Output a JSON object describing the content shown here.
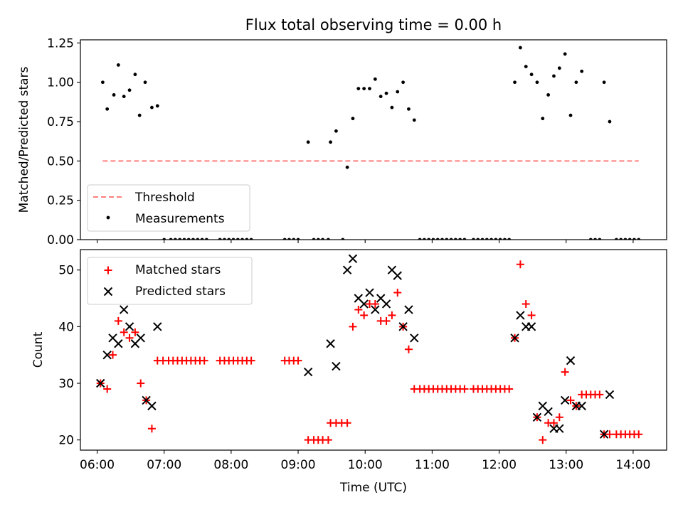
{
  "chart_data": [
    {
      "type": "scatter",
      "title": "Flux total observing time = 0.00 h",
      "xlabel": "",
      "ylabel": "Matched/Predicted stars",
      "xlim": [
        "05:45",
        "14:30"
      ],
      "ylim": [
        0,
        1.27
      ],
      "yticks": [
        0.0,
        0.25,
        0.5,
        0.75,
        1.0,
        1.25
      ],
      "ytick_labels": [
        "0.00",
        "0.25",
        "0.50",
        "0.75",
        "1.00",
        "1.25"
      ],
      "legend": {
        "placement": "lower-left",
        "entries": [
          "Threshold",
          "Measurements"
        ]
      },
      "threshold": {
        "name": "Threshold",
        "value": 0.5,
        "x_range": [
          "06:05",
          "14:05"
        ],
        "color": "#ff7f7f",
        "style": "dashed"
      },
      "series": [
        {
          "name": "Measurements",
          "color": "#000000",
          "marker": "dot",
          "points": [
            [
              "06:05",
              1.0
            ],
            [
              "06:09",
              0.83
            ],
            [
              "06:15",
              0.92
            ],
            [
              "06:19",
              1.11
            ],
            [
              "06:24",
              0.91
            ],
            [
              "06:29",
              0.95
            ],
            [
              "06:34",
              1.05
            ],
            [
              "06:38",
              0.79
            ],
            [
              "06:43",
              1.0
            ],
            [
              "06:49",
              0.84
            ],
            [
              "06:54",
              0.85
            ],
            [
              "07:00",
              0.0
            ],
            [
              "07:06",
              0.0
            ],
            [
              "07:10",
              0.0
            ],
            [
              "07:14",
              0.0
            ],
            [
              "07:18",
              0.0
            ],
            [
              "07:22",
              0.0
            ],
            [
              "07:26",
              0.0
            ],
            [
              "07:30",
              0.0
            ],
            [
              "07:34",
              0.0
            ],
            [
              "07:38",
              0.0
            ],
            [
              "07:50",
              0.0
            ],
            [
              "07:54",
              0.0
            ],
            [
              "07:58",
              0.0
            ],
            [
              "08:02",
              0.0
            ],
            [
              "08:06",
              0.0
            ],
            [
              "08:10",
              0.0
            ],
            [
              "08:14",
              0.0
            ],
            [
              "08:18",
              0.0
            ],
            [
              "08:48",
              0.0
            ],
            [
              "08:52",
              0.0
            ],
            [
              "08:56",
              0.0
            ],
            [
              "09:00",
              0.0
            ],
            [
              "09:09",
              0.62
            ],
            [
              "09:14",
              0.0
            ],
            [
              "09:18",
              0.0
            ],
            [
              "09:22",
              0.0
            ],
            [
              "09:27",
              0.0
            ],
            [
              "09:29",
              0.62
            ],
            [
              "09:34",
              0.69
            ],
            [
              "09:40",
              0.0
            ],
            [
              "09:44",
              0.46
            ],
            [
              "09:49",
              0.77
            ],
            [
              "09:54",
              0.96
            ],
            [
              "09:59",
              0.96
            ],
            [
              "10:04",
              0.96
            ],
            [
              "10:09",
              1.02
            ],
            [
              "10:14",
              0.91
            ],
            [
              "10:19",
              0.93
            ],
            [
              "10:24",
              0.84
            ],
            [
              "10:29",
              0.94
            ],
            [
              "10:34",
              1.0
            ],
            [
              "10:39",
              0.83
            ],
            [
              "10:44",
              0.76
            ],
            [
              "10:49",
              0.0
            ],
            [
              "10:53",
              0.0
            ],
            [
              "10:57",
              0.0
            ],
            [
              "11:01",
              0.0
            ],
            [
              "11:05",
              0.0
            ],
            [
              "11:09",
              0.0
            ],
            [
              "11:13",
              0.0
            ],
            [
              "11:17",
              0.0
            ],
            [
              "11:21",
              0.0
            ],
            [
              "11:25",
              0.0
            ],
            [
              "11:29",
              0.0
            ],
            [
              "11:37",
              0.0
            ],
            [
              "11:41",
              0.0
            ],
            [
              "11:45",
              0.0
            ],
            [
              "11:49",
              0.0
            ],
            [
              "11:53",
              0.0
            ],
            [
              "11:57",
              0.0
            ],
            [
              "12:01",
              0.0
            ],
            [
              "12:05",
              0.0
            ],
            [
              "12:09",
              0.0
            ],
            [
              "12:14",
              1.0
            ],
            [
              "12:19",
              1.22
            ],
            [
              "12:24",
              1.1
            ],
            [
              "12:29",
              1.05
            ],
            [
              "12:34",
              1.0
            ],
            [
              "12:39",
              0.77
            ],
            [
              "12:44",
              0.92
            ],
            [
              "12:49",
              1.04
            ],
            [
              "12:54",
              1.09
            ],
            [
              "12:59",
              1.18
            ],
            [
              "13:04",
              0.79
            ],
            [
              "13:09",
              1.0
            ],
            [
              "13:14",
              1.07
            ],
            [
              "13:22",
              0.0
            ],
            [
              "13:26",
              0.0
            ],
            [
              "13:30",
              0.0
            ],
            [
              "13:34",
              1.0
            ],
            [
              "13:39",
              0.75
            ],
            [
              "13:45",
              0.0
            ],
            [
              "13:49",
              0.0
            ],
            [
              "13:53",
              0.0
            ],
            [
              "13:57",
              0.0
            ],
            [
              "14:01",
              0.0
            ],
            [
              "14:05",
              0.0
            ]
          ]
        }
      ]
    },
    {
      "type": "scatter",
      "title": "",
      "xlabel": "Time (UTC)",
      "ylabel": "Count",
      "xlim": [
        "05:45",
        "14:30"
      ],
      "ylim": [
        18.2,
        53.6
      ],
      "xticks": [
        "06:00",
        "07:00",
        "08:00",
        "09:00",
        "10:00",
        "11:00",
        "12:00",
        "13:00",
        "14:00"
      ],
      "yticks": [
        20,
        30,
        40,
        50
      ],
      "ytick_labels": [
        "20",
        "30",
        "40",
        "50"
      ],
      "legend": {
        "placement": "top-left",
        "entries": [
          "Matched stars",
          "Predicted stars"
        ]
      },
      "series": [
        {
          "name": "Matched stars",
          "color": "#ff0000",
          "marker": "plus",
          "points": [
            [
              "06:03",
              30
            ],
            [
              "06:09",
              29
            ],
            [
              "06:14",
              35
            ],
            [
              "06:19",
              41
            ],
            [
              "06:24",
              39
            ],
            [
              "06:29",
              38
            ],
            [
              "06:34",
              39
            ],
            [
              "06:39",
              30
            ],
            [
              "06:44",
              27
            ],
            [
              "06:49",
              22
            ],
            [
              "06:54",
              34
            ],
            [
              "06:59",
              34
            ],
            [
              "07:04",
              34
            ],
            [
              "07:08",
              34
            ],
            [
              "07:12",
              34
            ],
            [
              "07:16",
              34
            ],
            [
              "07:20",
              34
            ],
            [
              "07:24",
              34
            ],
            [
              "07:28",
              34
            ],
            [
              "07:32",
              34
            ],
            [
              "07:36",
              34
            ],
            [
              "07:50",
              34
            ],
            [
              "07:54",
              34
            ],
            [
              "07:58",
              34
            ],
            [
              "08:02",
              34
            ],
            [
              "08:06",
              34
            ],
            [
              "08:10",
              34
            ],
            [
              "08:14",
              34
            ],
            [
              "08:18",
              34
            ],
            [
              "08:48",
              34
            ],
            [
              "08:52",
              34
            ],
            [
              "08:56",
              34
            ],
            [
              "09:00",
              34
            ],
            [
              "09:09",
              20
            ],
            [
              "09:14",
              20
            ],
            [
              "09:18",
              20
            ],
            [
              "09:22",
              20
            ],
            [
              "09:27",
              20
            ],
            [
              "09:29",
              23
            ],
            [
              "09:34",
              23
            ],
            [
              "09:39",
              23
            ],
            [
              "09:44",
              23
            ],
            [
              "09:49",
              40
            ],
            [
              "09:54",
              43
            ],
            [
              "09:59",
              42
            ],
            [
              "10:04",
              44
            ],
            [
              "10:09",
              44
            ],
            [
              "10:14",
              41
            ],
            [
              "10:19",
              41
            ],
            [
              "10:24",
              42
            ],
            [
              "10:29",
              46
            ],
            [
              "10:34",
              40
            ],
            [
              "10:39",
              36
            ],
            [
              "10:44",
              29
            ],
            [
              "10:49",
              29
            ],
            [
              "10:53",
              29
            ],
            [
              "10:57",
              29
            ],
            [
              "11:01",
              29
            ],
            [
              "11:05",
              29
            ],
            [
              "11:09",
              29
            ],
            [
              "11:13",
              29
            ],
            [
              "11:17",
              29
            ],
            [
              "11:21",
              29
            ],
            [
              "11:25",
              29
            ],
            [
              "11:29",
              29
            ],
            [
              "11:37",
              29
            ],
            [
              "11:41",
              29
            ],
            [
              "11:45",
              29
            ],
            [
              "11:49",
              29
            ],
            [
              "11:53",
              29
            ],
            [
              "11:57",
              29
            ],
            [
              "12:01",
              29
            ],
            [
              "12:05",
              29
            ],
            [
              "12:09",
              29
            ],
            [
              "12:14",
              38
            ],
            [
              "12:19",
              51
            ],
            [
              "12:24",
              44
            ],
            [
              "12:29",
              42
            ],
            [
              "12:34",
              24
            ],
            [
              "12:39",
              20
            ],
            [
              "12:44",
              23
            ],
            [
              "12:49",
              23
            ],
            [
              "12:54",
              24
            ],
            [
              "12:59",
              32
            ],
            [
              "13:04",
              27
            ],
            [
              "13:09",
              26
            ],
            [
              "13:14",
              28
            ],
            [
              "13:18",
              28
            ],
            [
              "13:22",
              28
            ],
            [
              "13:26",
              28
            ],
            [
              "13:30",
              28
            ],
            [
              "13:34",
              21
            ],
            [
              "13:39",
              21
            ],
            [
              "13:45",
              21
            ],
            [
              "13:49",
              21
            ],
            [
              "13:53",
              21
            ],
            [
              "13:57",
              21
            ],
            [
              "14:01",
              21
            ],
            [
              "14:05",
              21
            ]
          ]
        },
        {
          "name": "Predicted stars",
          "color": "#000000",
          "marker": "x",
          "points": [
            [
              "06:03",
              30
            ],
            [
              "06:09",
              35
            ],
            [
              "06:14",
              38
            ],
            [
              "06:19",
              37
            ],
            [
              "06:24",
              43
            ],
            [
              "06:29",
              40
            ],
            [
              "06:34",
              37
            ],
            [
              "06:39",
              38
            ],
            [
              "06:44",
              27
            ],
            [
              "06:49",
              26
            ],
            [
              "06:54",
              40
            ],
            [
              "09:09",
              32
            ],
            [
              "09:29",
              37
            ],
            [
              "09:34",
              33
            ],
            [
              "09:44",
              50
            ],
            [
              "09:49",
              52
            ],
            [
              "09:54",
              45
            ],
            [
              "09:59",
              44
            ],
            [
              "10:04",
              46
            ],
            [
              "10:09",
              43
            ],
            [
              "10:14",
              45
            ],
            [
              "10:19",
              44
            ],
            [
              "10:24",
              50
            ],
            [
              "10:29",
              49
            ],
            [
              "10:34",
              40
            ],
            [
              "10:39",
              43
            ],
            [
              "10:44",
              38
            ],
            [
              "12:14",
              38
            ],
            [
              "12:19",
              42
            ],
            [
              "12:24",
              40
            ],
            [
              "12:29",
              40
            ],
            [
              "12:34",
              24
            ],
            [
              "12:39",
              26
            ],
            [
              "12:44",
              25
            ],
            [
              "12:49",
              22
            ],
            [
              "12:54",
              22
            ],
            [
              "12:59",
              27
            ],
            [
              "13:04",
              34
            ],
            [
              "13:09",
              26
            ],
            [
              "13:14",
              26
            ],
            [
              "13:34",
              21
            ],
            [
              "13:39",
              28
            ]
          ]
        }
      ]
    }
  ]
}
